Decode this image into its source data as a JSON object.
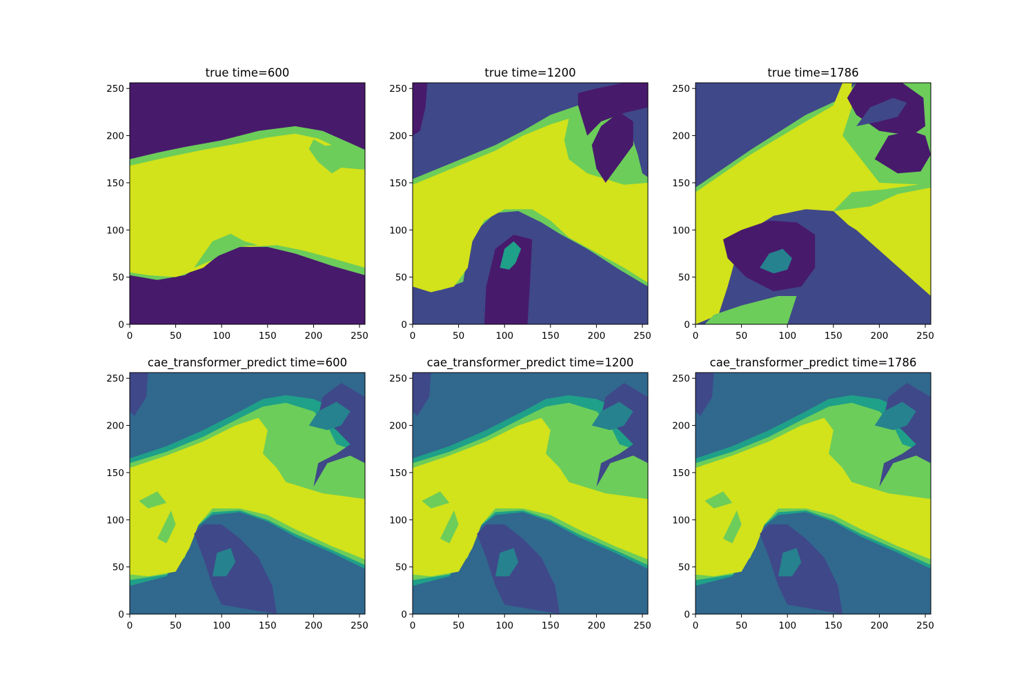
{
  "colors": {
    "level_0": "#481a6c",
    "level_1": "#3f4889",
    "level_2": "#31688e",
    "level_3": "#26828e",
    "level_4": "#1fa088",
    "level_5": "#6ccd5a",
    "level_6": "#d2e21b",
    "axis": "#000000"
  },
  "chart_data": [
    {
      "type": "contourf",
      "title": "true time=600",
      "xlim": [
        0,
        256
      ],
      "ylim": [
        0,
        256
      ],
      "xticks": [
        0,
        50,
        100,
        150,
        200,
        250
      ],
      "yticks": [
        0,
        50,
        100,
        150,
        200,
        250
      ],
      "background_level": 0,
      "description_bands": [
        {
          "level": 6,
          "upper": [
            [
              0,
              168
            ],
            [
              50,
              180
            ],
            [
              100,
              188
            ],
            [
              150,
              198
            ],
            [
              180,
              200
            ],
            [
              220,
              192
            ],
            [
              256,
              170
            ]
          ],
          "lower": [
            [
              0,
              55
            ],
            [
              40,
              47
            ],
            [
              80,
              60
            ],
            [
              120,
              78
            ],
            [
              160,
              82
            ],
            [
              200,
              76
            ],
            [
              256,
              58
            ]
          ]
        }
      ]
    },
    {
      "type": "contourf",
      "title": "true time=1200",
      "xlim": [
        0,
        256
      ],
      "ylim": [
        0,
        256
      ],
      "xticks": [
        0,
        50,
        100,
        150,
        200,
        250
      ],
      "yticks": [
        0,
        50,
        100,
        150,
        200,
        250
      ],
      "background_level": 1
    },
    {
      "type": "contourf",
      "title": "true time=1786",
      "xlim": [
        0,
        256
      ],
      "ylim": [
        0,
        256
      ],
      "xticks": [
        0,
        50,
        100,
        150,
        200,
        250
      ],
      "yticks": [
        0,
        50,
        100,
        150,
        200,
        250
      ],
      "background_level": 1
    },
    {
      "type": "contourf",
      "title": "cae_transformer_predict time=600",
      "xlim": [
        0,
        256
      ],
      "ylim": [
        0,
        256
      ],
      "xticks": [
        0,
        50,
        100,
        150,
        200,
        250
      ],
      "yticks": [
        0,
        50,
        100,
        150,
        200,
        250
      ],
      "background_level": 2
    },
    {
      "type": "contourf",
      "title": "cae_transformer_predict time=1200",
      "xlim": [
        0,
        256
      ],
      "ylim": [
        0,
        256
      ],
      "xticks": [
        0,
        50,
        100,
        150,
        200,
        250
      ],
      "yticks": [
        0,
        50,
        100,
        150,
        200,
        250
      ],
      "background_level": 2
    },
    {
      "type": "contourf",
      "title": "cae_transformer_predict time=1786",
      "xlim": [
        0,
        256
      ],
      "ylim": [
        0,
        256
      ],
      "xticks": [
        0,
        50,
        100,
        150,
        200,
        250
      ],
      "yticks": [
        0,
        50,
        100,
        150,
        200,
        250
      ],
      "background_level": 2
    }
  ]
}
